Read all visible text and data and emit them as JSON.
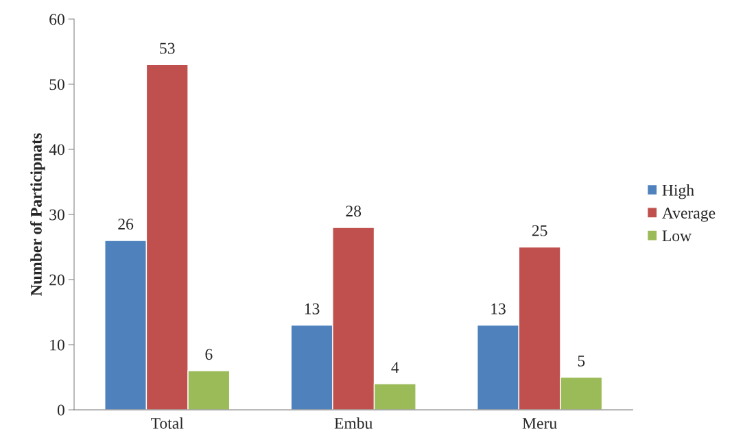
{
  "chart_data": {
    "type": "bar",
    "ylabel": "Number of Participnats",
    "categories": [
      "Total",
      "Embu",
      "Meru"
    ],
    "series": [
      {
        "name": "High",
        "color": "#4f81bd",
        "values": [
          26,
          13,
          13
        ]
      },
      {
        "name": "Average",
        "color": "#c0504d",
        "values": [
          53,
          28,
          25
        ]
      },
      {
        "name": "Low",
        "color": "#9bbb59",
        "values": [
          6,
          4,
          5
        ]
      }
    ],
    "ylim": [
      0,
      60
    ],
    "yticks": [
      0,
      10,
      20,
      30,
      40,
      50,
      60
    ],
    "data_labels": true,
    "legend": "right",
    "grid": false
  }
}
